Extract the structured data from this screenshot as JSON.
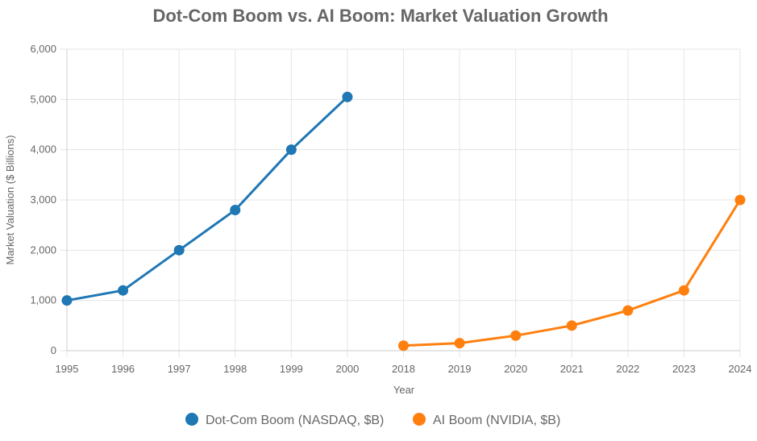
{
  "chart_data": {
    "type": "line",
    "title": "Dot-Com Boom vs. AI Boom: Market Valuation Growth",
    "xlabel": "Year",
    "ylabel": "Market Valuation ($ Billions)",
    "ylim": [
      0,
      6000
    ],
    "y_ticks": [
      0,
      1000,
      2000,
      3000,
      4000,
      5000,
      6000
    ],
    "y_tick_labels": [
      "0",
      "1,000",
      "2,000",
      "3,000",
      "4,000",
      "5,000",
      "6,000"
    ],
    "categories": [
      "1995",
      "1996",
      "1997",
      "1998",
      "1999",
      "2000",
      "2018",
      "2019",
      "2020",
      "2021",
      "2022",
      "2023",
      "2024"
    ],
    "grid": true,
    "legend_position": "bottom-center",
    "series": [
      {
        "name": "Dot-Com Boom (NASDAQ, $B)",
        "color": "#1f77b4",
        "values": [
          1000,
          1200,
          2000,
          2800,
          4000,
          5050,
          null,
          null,
          null,
          null,
          null,
          null,
          null
        ]
      },
      {
        "name": "AI Boom (NVIDIA, $B)",
        "color": "#ff7f0e",
        "values": [
          null,
          null,
          null,
          null,
          null,
          null,
          100,
          150,
          300,
          500,
          800,
          1200,
          3000
        ]
      }
    ]
  }
}
